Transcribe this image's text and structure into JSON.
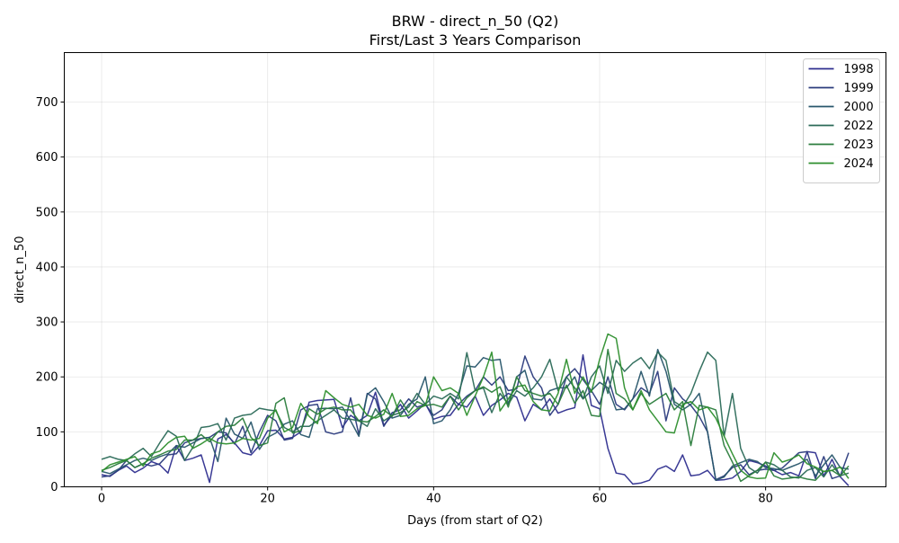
{
  "chart_data": {
    "type": "line",
    "title": "BRW - direct_n_50 (Q2)",
    "subtitle": "First/Last 3 Years Comparison",
    "xlabel": "Days (from start of Q2)",
    "ylabel": "direct_n_50",
    "xlim": [
      -4.5,
      94.5
    ],
    "ylim": [
      0,
      790
    ],
    "xticks": [
      0,
      20,
      40,
      60,
      80
    ],
    "yticks": [
      0,
      100,
      200,
      300,
      400,
      500,
      600,
      700
    ],
    "grid": true,
    "legend_position": "top-right",
    "x": [
      0,
      1,
      2,
      3,
      4,
      5,
      6,
      7,
      8,
      9,
      10,
      11,
      12,
      13,
      14,
      15,
      16,
      17,
      18,
      19,
      20,
      21,
      22,
      23,
      24,
      25,
      26,
      27,
      28,
      29,
      30,
      31,
      32,
      33,
      34,
      35,
      36,
      37,
      38,
      39,
      40,
      41,
      42,
      43,
      44,
      45,
      46,
      47,
      48,
      49,
      50,
      51,
      52,
      53,
      54,
      55,
      56,
      57,
      58,
      59,
      60,
      61,
      62,
      63,
      64,
      65,
      66,
      67,
      68,
      69,
      70,
      71,
      72,
      73,
      74,
      75,
      76,
      77,
      78,
      79,
      80,
      81,
      82,
      83,
      84,
      85,
      86,
      87,
      88,
      89,
      90
    ],
    "series": [
      {
        "name": "1998",
        "color": "#2f2f8f",
        "values": [
          22,
          19,
          30,
          38,
          26,
          34,
          46,
          40,
          25,
          75,
          48,
          52,
          58,
          8,
          87,
          95,
          80,
          62,
          58,
          75,
          102,
          103,
          87,
          90,
          100,
          154,
          157,
          158,
          159,
          108,
          130,
          120,
          130,
          172,
          112,
          130,
          150,
          125,
          138,
          152,
          123,
          128,
          130,
          150,
          145,
          165,
          130,
          148,
          158,
          170,
          163,
          120,
          150,
          140,
          160,
          134,
          140,
          144,
          240,
          148,
          142,
          70,
          25,
          22,
          5,
          7,
          12,
          32,
          38,
          28,
          58,
          20,
          22,
          30,
          12,
          13,
          16,
          28,
          48,
          44,
          38,
          30,
          22,
          26,
          20,
          64,
          62,
          20,
          50,
          18,
          2
        ]
      },
      {
        "name": "1999",
        "color": "#2b3b7d",
        "values": [
          18,
          20,
          30,
          48,
          35,
          42,
          38,
          42,
          58,
          60,
          80,
          85,
          88,
          90,
          100,
          98,
          78,
          110,
          62,
          100,
          130,
          120,
          85,
          88,
          140,
          148,
          150,
          100,
          96,
          100,
          162,
          95,
          170,
          160,
          110,
          135,
          140,
          160,
          145,
          150,
          130,
          140,
          165,
          150,
          165,
          175,
          200,
          185,
          200,
          175,
          178,
          238,
          200,
          180,
          130,
          150,
          200,
          215,
          195,
          175,
          150,
          200,
          150,
          140,
          160,
          180,
          170,
          210,
          120,
          180,
          160,
          148,
          128,
          100,
          13,
          20,
          35,
          40,
          22,
          30,
          32,
          30,
          34,
          48,
          62,
          64,
          15,
          55,
          15,
          20,
          62
        ]
      },
      {
        "name": "2000",
        "color": "#28566b",
        "values": [
          28,
          24,
          32,
          40,
          48,
          52,
          48,
          55,
          60,
          75,
          72,
          80,
          88,
          90,
          46,
          125,
          96,
          88,
          118,
          68,
          90,
          98,
          114,
          120,
          95,
          90,
          142,
          143,
          142,
          145,
          120,
          92,
          168,
          180,
          155,
          125,
          130,
          150,
          160,
          200,
          115,
          120,
          140,
          170,
          220,
          218,
          235,
          230,
          232,
          150,
          200,
          212,
          160,
          158,
          175,
          180,
          180,
          200,
          160,
          175,
          190,
          180,
          140,
          142,
          160,
          210,
          165,
          250,
          210,
          150,
          140,
          150,
          170,
          100,
          12,
          18,
          38,
          44,
          50,
          46,
          35,
          33,
          30,
          36,
          42,
          50,
          20,
          40,
          58,
          35,
          32
        ]
      },
      {
        "name": "2022",
        "color": "#2b6a58",
        "values": [
          50,
          55,
          50,
          48,
          60,
          70,
          55,
          80,
          102,
          92,
          48,
          72,
          108,
          110,
          115,
          85,
          125,
          130,
          132,
          143,
          140,
          138,
          108,
          100,
          110,
          110,
          120,
          130,
          140,
          125,
          123,
          120,
          110,
          142,
          120,
          130,
          135,
          145,
          170,
          150,
          165,
          160,
          170,
          160,
          244,
          175,
          180,
          135,
          170,
          150,
          175,
          165,
          180,
          200,
          232,
          175,
          200,
          180,
          160,
          200,
          220,
          170,
          230,
          210,
          225,
          235,
          215,
          245,
          230,
          155,
          145,
          170,
          210,
          245,
          230,
          92,
          170,
          70,
          35,
          25,
          45,
          40,
          30,
          18,
          16,
          30,
          35,
          18,
          40,
          20,
          25
        ]
      },
      {
        "name": "2023",
        "color": "#2b7d3d",
        "values": [
          30,
          35,
          42,
          48,
          35,
          42,
          52,
          58,
          65,
          68,
          85,
          85,
          95,
          82,
          100,
          110,
          112,
          125,
          90,
          75,
          80,
          152,
          162,
          98,
          102,
          142,
          132,
          142,
          145,
          140,
          140,
          120,
          118,
          128,
          140,
          128,
          158,
          135,
          155,
          148,
          150,
          145,
          165,
          140,
          162,
          175,
          182,
          172,
          182,
          145,
          200,
          175,
          170,
          165,
          170,
          150,
          185,
          152,
          175,
          130,
          128,
          250,
          170,
          160,
          140,
          170,
          150,
          160,
          170,
          140,
          155,
          75,
          148,
          145,
          140,
          75,
          45,
          10,
          20,
          30,
          45,
          20,
          14,
          16,
          18,
          14,
          12,
          28,
          30,
          20,
          38
        ]
      },
      {
        "name": "2024",
        "color": "#2e8f2e",
        "values": [
          28,
          40,
          45,
          50,
          55,
          38,
          60,
          65,
          80,
          90,
          92,
          70,
          78,
          88,
          80,
          78,
          80,
          88,
          85,
          88,
          125,
          140,
          100,
          108,
          152,
          128,
          115,
          175,
          162,
          150,
          145,
          150,
          130,
          125,
          132,
          170,
          128,
          130,
          142,
          148,
          200,
          175,
          180,
          170,
          130,
          165,
          200,
          245,
          138,
          160,
          182,
          185,
          155,
          140,
          138,
          170,
          232,
          170,
          200,
          172,
          232,
          278,
          270,
          180,
          140,
          175,
          140,
          120,
          100,
          98,
          150,
          155,
          140,
          145,
          125,
          92,
          60,
          30,
          18,
          15,
          16,
          62,
          45,
          50,
          58,
          42,
          36,
          28,
          30,
          36,
          15
        ]
      }
    ]
  }
}
